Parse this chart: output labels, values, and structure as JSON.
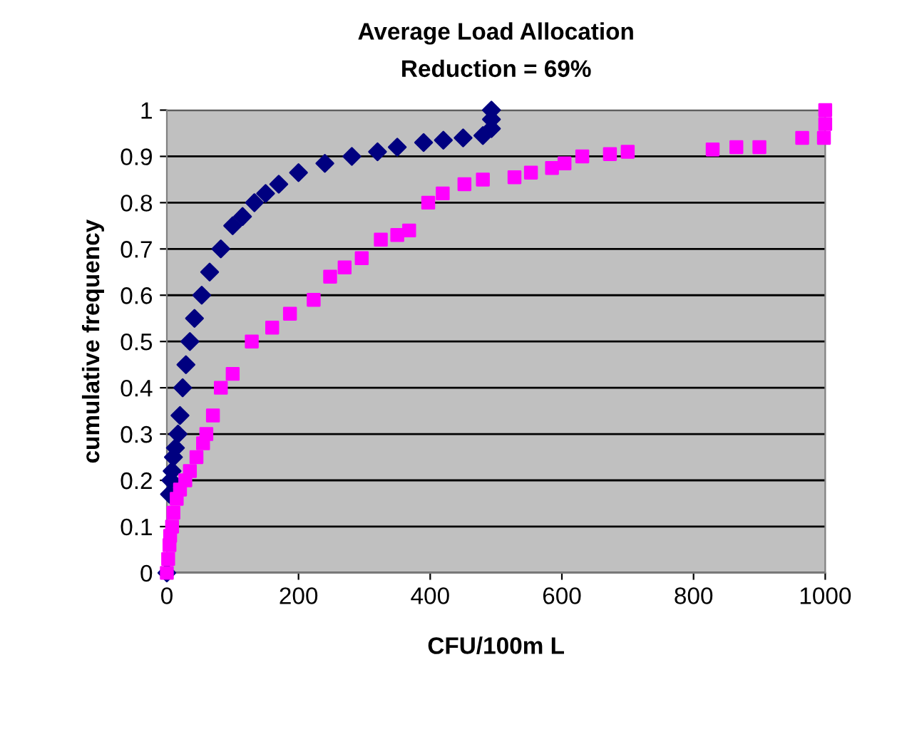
{
  "chart_data": {
    "type": "scatter",
    "title": "Average Load Allocation",
    "subtitle": "Reduction = 69%",
    "xlabel": "CFU/100m L",
    "ylabel": "cumulative frequency",
    "xlim": [
      0,
      1000
    ],
    "xticks": [
      0,
      200,
      400,
      600,
      800,
      1000
    ],
    "ylim": [
      0,
      1
    ],
    "yticks": [
      0,
      0.1,
      0.2,
      0.3,
      0.4,
      0.5,
      0.6,
      0.7,
      0.8,
      0.9,
      1
    ],
    "grid": "y",
    "legend": false,
    "series": [
      {
        "color": "#000080",
        "marker": "diamond",
        "x": [
          0,
          4,
          6,
          8,
          10,
          13,
          17,
          20,
          24,
          29,
          35,
          42,
          53,
          65,
          82,
          100,
          115,
          133,
          150,
          170,
          200,
          240,
          281,
          320,
          350,
          390,
          420,
          450,
          480,
          493,
          493,
          493
        ],
        "values": [
          0,
          0.17,
          0.2,
          0.22,
          0.25,
          0.27,
          0.3,
          0.34,
          0.4,
          0.45,
          0.5,
          0.55,
          0.6,
          0.65,
          0.7,
          0.75,
          0.77,
          0.8,
          0.82,
          0.84,
          0.865,
          0.885,
          0.9,
          0.91,
          0.92,
          0.93,
          0.935,
          0.94,
          0.945,
          0.96,
          0.98,
          1.0
        ]
      },
      {
        "color": "#ff00ff",
        "marker": "square",
        "x": [
          0,
          2,
          4,
          5,
          8,
          10,
          15,
          20,
          28,
          35,
          45,
          55,
          60,
          70,
          82,
          100,
          129,
          160,
          187,
          223,
          248,
          270,
          296,
          325,
          350,
          368,
          397,
          419,
          452,
          480,
          528,
          553,
          585,
          604,
          631,
          673,
          700,
          829,
          865,
          900,
          965,
          998,
          1000,
          1000
        ],
        "values": [
          0,
          0.03,
          0.06,
          0.08,
          0.1,
          0.13,
          0.16,
          0.18,
          0.2,
          0.22,
          0.25,
          0.28,
          0.3,
          0.34,
          0.4,
          0.43,
          0.5,
          0.53,
          0.56,
          0.59,
          0.64,
          0.66,
          0.68,
          0.72,
          0.73,
          0.74,
          0.8,
          0.82,
          0.84,
          0.85,
          0.855,
          0.865,
          0.875,
          0.885,
          0.9,
          0.905,
          0.91,
          0.915,
          0.92,
          0.92,
          0.94,
          0.94,
          0.97,
          1.0
        ]
      }
    ]
  }
}
